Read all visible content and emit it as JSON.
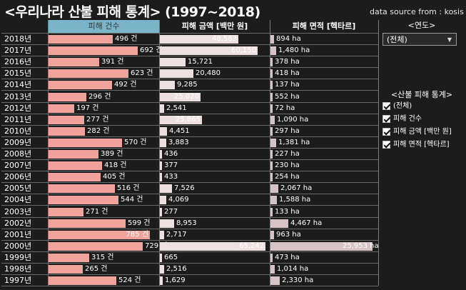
{
  "header": {
    "title": "<우리나라 산불 피해 통계> (1997~2018)",
    "source": "data source from : kosis"
  },
  "columns": {
    "count": "피해 건수",
    "damage": "피해 금액 [백만 원]",
    "area": "피해 면적 [헥타르]"
  },
  "years": [
    "2018년",
    "2017년",
    "2016년",
    "2015년",
    "2014년",
    "2013년",
    "2012년",
    "2011년",
    "2010년",
    "2009년",
    "2008년",
    "2007년",
    "2006년",
    "2005년",
    "2004년",
    "2003년",
    "2002년",
    "2001년",
    "2000년",
    "1999년",
    "1998년",
    "1997년"
  ],
  "count_labels": [
    "496 건",
    "692 건",
    "391 건",
    "623 건",
    "492 건",
    "296 건",
    "197 건",
    "277 건",
    "282 건",
    "570 건",
    "389 건",
    "418 건",
    "405 건",
    "516 건",
    "544 건",
    "271 건",
    "599 건",
    "785 건",
    "729 건",
    "315 건",
    "265 건",
    "524 건"
  ],
  "damage_labels": [
    "48,583",
    "60,150",
    "15,721",
    "20,480",
    "9,285",
    "25,020",
    "2,541",
    "25,865",
    "4,451",
    "3,883",
    "436",
    "377",
    "433",
    "7,526",
    "4,069",
    "277",
    "8,953",
    "2,717",
    "65,242",
    "665",
    "2,516",
    "1,629"
  ],
  "area_labels": [
    "894 ha",
    "1,480 ha",
    "378 ha",
    "418 ha",
    "137 ha",
    "552 ha",
    "72 ha",
    "1,090 ha",
    "297 ha",
    "1,381 ha",
    "227 ha",
    "230 ha",
    "254 ha",
    "2,067 ha",
    "1,588 ha",
    "133 ha",
    "4,467 ha",
    "963 ha",
    "25,953 ha",
    "473 ha",
    "1,014 ha",
    "2,330 ha"
  ],
  "chart_data": {
    "type": "bar",
    "categories": [
      "2018년",
      "2017년",
      "2016년",
      "2015년",
      "2014년",
      "2013년",
      "2012년",
      "2011년",
      "2010년",
      "2009년",
      "2008년",
      "2007년",
      "2006년",
      "2005년",
      "2004년",
      "2003년",
      "2002년",
      "2001년",
      "2000년",
      "1999년",
      "1998년",
      "1997년"
    ],
    "series": [
      {
        "name": "피해 건수",
        "values": [
          496,
          692,
          391,
          623,
          492,
          296,
          197,
          277,
          282,
          570,
          389,
          418,
          405,
          516,
          544,
          271,
          599,
          785,
          729,
          315,
          265,
          524
        ]
      },
      {
        "name": "피해 금액 [백만 원]",
        "values": [
          48583,
          60150,
          15721,
          20480,
          9285,
          25020,
          2541,
          25865,
          4451,
          3883,
          436,
          377,
          433,
          7526,
          4069,
          277,
          8953,
          2717,
          65242,
          665,
          2516,
          1629
        ]
      },
      {
        "name": "피해 면적 [헥타르]",
        "values": [
          894,
          1480,
          378,
          418,
          137,
          552,
          72,
          1090,
          297,
          1381,
          227,
          230,
          254,
          2067,
          1588,
          133,
          4467,
          963,
          25953,
          473,
          1014,
          2330
        ]
      }
    ],
    "colors": {
      "count": "#f0a39a",
      "damage": "#ebdfe0",
      "area": "#d6c3c6",
      "selected_header": "#7ab4c8"
    }
  },
  "year_filter": {
    "label": "<연도>",
    "selected": "(전체)"
  },
  "measure_filter": {
    "label": "<산불 피해 통계>",
    "options": [
      "(전체)",
      "피해 건수",
      "피해 금액 [백만 원]",
      "피해 면적 [헥타르]"
    ]
  },
  "icons": {
    "dropdown": "chevron-down-icon",
    "check": "checkbox-checked-icon"
  }
}
